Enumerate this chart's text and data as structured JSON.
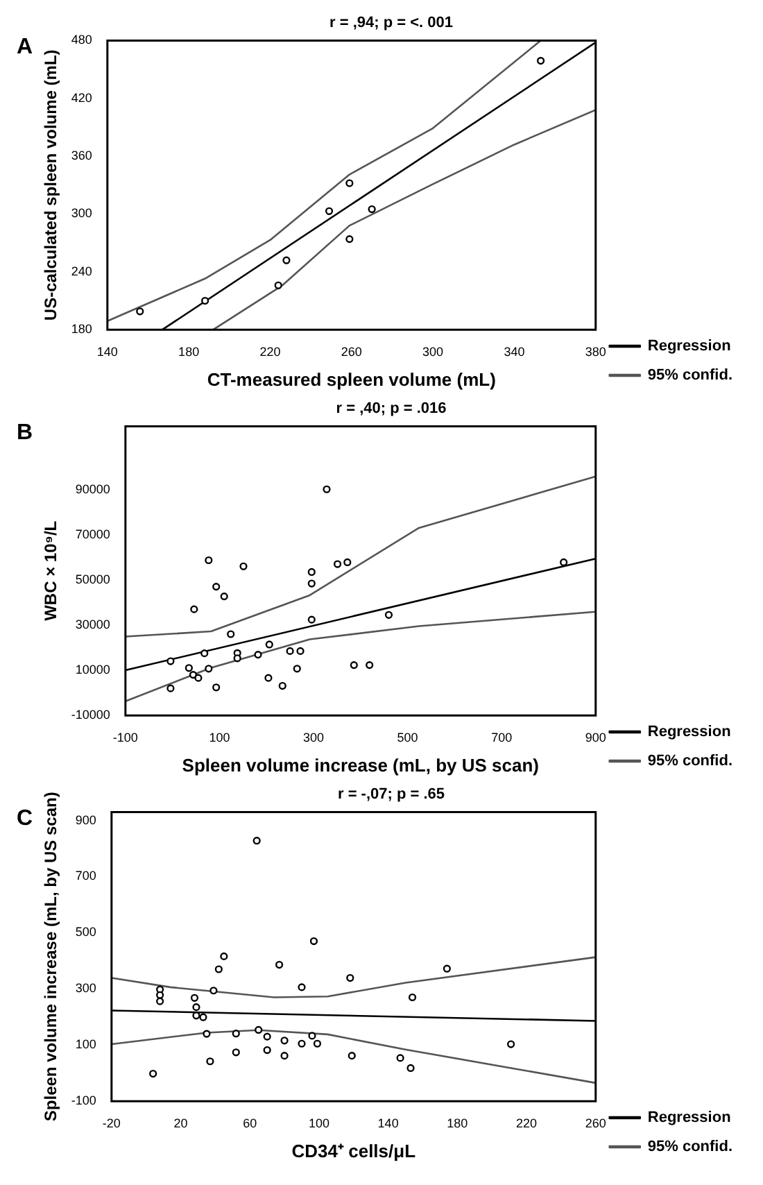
{
  "chart_data": [
    {
      "type": "scatter",
      "title": "r = ,94; p = <. 001",
      "xlabel": "CT-measured spleen volume (mL)",
      "ylabel": "US-calculated spleen volume (mL)",
      "annotations": [
        "A"
      ],
      "xlim": [
        140,
        380
      ],
      "ylim": [
        180,
        480
      ],
      "xticks": [
        140,
        180,
        220,
        260,
        300,
        340,
        380
      ],
      "yticks": [
        180,
        240,
        300,
        360,
        420,
        480
      ],
      "legend": "right",
      "series": [
        {
          "marker": "circle",
          "color": "#000000",
          "x": [
            156,
            188,
            224,
            228,
            249,
            259,
            259,
            270,
            353
          ],
          "values": [
            199,
            210,
            226,
            252,
            303,
            332,
            274,
            305,
            459
          ]
        },
        {
          "type": "line",
          "name": "Regression",
          "color": "#000000",
          "x": [
            167,
            380
          ],
          "values": [
            180,
            478
          ]
        },
        {
          "type": "line",
          "name": "95% confid.",
          "color": "#555555",
          "x": [
            140,
            188,
            220,
            259,
            300,
            353
          ],
          "values": [
            189,
            233,
            273,
            341,
            389,
            480
          ]
        },
        {
          "type": "line",
          "color": "#555555",
          "x": [
            192,
            226,
            259,
            300,
            340,
            380
          ],
          "values": [
            180,
            226,
            288,
            331,
            372,
            408
          ]
        }
      ]
    },
    {
      "type": "scatter",
      "title": "r = ,40; p = .016",
      "xlabel": "Spleen volume increase (mL, by US scan)",
      "ylabel": "WBC × 10⁹/L",
      "annotations": [
        "B"
      ],
      "xlim": [
        -100,
        900
      ],
      "ylim": [
        -10000,
        118000
      ],
      "xticks": [
        -100,
        100,
        300,
        500,
        700,
        900
      ],
      "yticks": [
        -10000,
        10000,
        30000,
        50000,
        70000,
        90000
      ],
      "legend": "right",
      "series": [
        {
          "marker": "circle",
          "color": "#000000",
          "x": [
            -4,
            -4,
            35,
            46,
            44,
            55,
            68,
            77,
            77,
            93,
            93,
            110,
            124,
            138,
            138,
            151,
            182,
            206,
            204,
            234,
            250,
            272,
            265,
            296,
            296,
            296,
            328,
            351,
            372,
            386,
            419,
            460,
            832
          ],
          "values": [
            14000,
            2000,
            11000,
            37000,
            8000,
            6600,
            17500,
            58700,
            10700,
            47000,
            2400,
            42700,
            26000,
            17600,
            15300,
            56000,
            16900,
            21400,
            6600,
            3100,
            18500,
            18500,
            10700,
            53500,
            48400,
            32400,
            90100,
            57000,
            57800,
            12300,
            12300,
            34500,
            57800
          ]
        },
        {
          "type": "line",
          "name": "Regression",
          "color": "#000000",
          "x": [
            -100,
            900
          ],
          "values": [
            10000,
            59400
          ]
        },
        {
          "type": "line",
          "name": "95% confid.",
          "color": "#555555",
          "x": [
            -100,
            82,
            292,
            524,
            900
          ],
          "values": [
            24900,
            27200,
            43200,
            73000,
            95800
          ]
        },
        {
          "type": "line",
          "color": "#555555",
          "x": [
            -100,
            82,
            292,
            524,
            900
          ],
          "values": [
            -3700,
            11100,
            23700,
            29500,
            35900
          ]
        }
      ]
    },
    {
      "type": "scatter",
      "title": "r = -,07; p = .65",
      "xlabel": "CD34⁺ cells/μL",
      "ylabel": "Spleen volume increase (mL, by US scan)",
      "annotations": [
        "C"
      ],
      "xlim": [
        -20,
        260
      ],
      "ylim": [
        -100,
        930
      ],
      "xticks": [
        -20,
        20,
        60,
        100,
        140,
        180,
        220,
        260
      ],
      "yticks": [
        -100,
        100,
        300,
        500,
        700,
        900
      ],
      "legend": "right",
      "series": [
        {
          "marker": "circle",
          "color": "#000000",
          "x": [
            4,
            8,
            8,
            8,
            28,
            29,
            29,
            33,
            35,
            37,
            39,
            42,
            45,
            52,
            52,
            64,
            65,
            70,
            70,
            77,
            80,
            80,
            90,
            90,
            96,
            97,
            99,
            118,
            119,
            147,
            153,
            154,
            174,
            211
          ],
          "values": [
            -2,
            298,
            278,
            256,
            268,
            235,
            205,
            199,
            140,
            42,
            294,
            370,
            416,
            74,
            141,
            828,
            154,
            130,
            82,
            386,
            116,
            62,
            306,
            105,
            133,
            470,
            105,
            339,
            62,
            54,
            18,
            270,
            372,
            103
          ]
        },
        {
          "type": "line",
          "name": "Regression",
          "color": "#000000",
          "x": [
            -20,
            260
          ],
          "values": [
            223,
            186
          ]
        },
        {
          "type": "line",
          "name": "95% confid.",
          "color": "#555555",
          "x": [
            -20,
            14,
            74,
            105,
            150,
            260
          ],
          "values": [
            339,
            306,
            270,
            273,
            322,
            413
          ]
        },
        {
          "type": "line",
          "color": "#555555",
          "x": [
            -20,
            35,
            65,
            105,
            150,
            211,
            260
          ],
          "values": [
            103,
            144,
            153,
            138,
            84,
            18,
            -35
          ]
        }
      ]
    }
  ]
}
